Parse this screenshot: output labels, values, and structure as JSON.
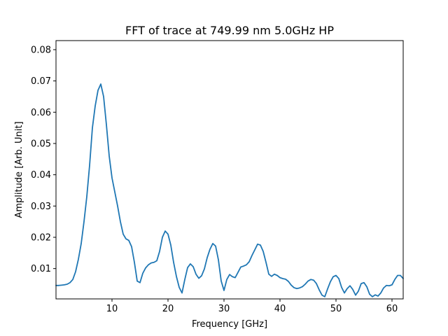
{
  "chart_data": {
    "type": "line",
    "title": "FFT of trace at 749.99 nm 5.0GHz HP",
    "xlabel": "Frequency [GHz]",
    "ylabel": "Amplitude [Arb. Unit]",
    "xlim": [
      0,
      62
    ],
    "ylim": [
      0.0003,
      0.0829
    ],
    "xticks": [
      10,
      20,
      30,
      40,
      50,
      60
    ],
    "yticks": [
      0.01,
      0.02,
      0.03,
      0.04,
      0.05,
      0.06,
      0.07,
      0.08
    ],
    "ytick_labels": [
      "0.01",
      "0.02",
      "0.03",
      "0.04",
      "0.05",
      "0.06",
      "0.07",
      "0.08"
    ],
    "grid": false,
    "colors": {
      "line": "#1f77b4"
    },
    "series": [
      {
        "x": [
          0,
          0.5,
          1,
          1.5,
          2,
          2.5,
          3,
          3.5,
          4,
          4.5,
          5,
          5.5,
          6,
          6.5,
          7,
          7.5,
          8,
          8.5,
          9,
          9.5,
          10,
          10.5,
          11,
          11.5,
          12,
          12.5,
          13,
          13.5,
          14,
          14.5,
          15,
          15.5,
          16,
          16.5,
          17,
          17.5,
          18,
          18.5,
          19,
          19.5,
          20,
          20.5,
          21,
          21.5,
          22,
          22.5,
          23,
          23.5,
          24,
          24.5,
          25,
          25.5,
          26,
          26.5,
          27,
          27.5,
          28,
          28.5,
          29,
          29.5,
          30,
          30.5,
          31,
          31.5,
          32,
          32.5,
          33,
          33.5,
          34,
          34.5,
          35,
          35.5,
          36,
          36.5,
          37,
          37.5,
          38,
          38.5,
          39,
          39.5,
          40,
          40.5,
          41,
          41.5,
          42,
          42.5,
          43,
          43.5,
          44,
          44.5,
          45,
          45.5,
          46,
          46.5,
          47,
          47.5,
          48,
          48.5,
          49,
          49.5,
          50,
          50.5,
          51,
          51.5,
          52,
          52.5,
          53,
          53.5,
          54,
          54.5,
          55,
          55.5,
          56,
          56.5,
          57,
          57.5,
          58,
          58.5,
          59,
          59.5,
          60,
          60.5,
          61,
          61.5,
          62
        ],
        "values": [
          0.0046,
          0.0046,
          0.0047,
          0.0048,
          0.005,
          0.0055,
          0.0065,
          0.009,
          0.013,
          0.018,
          0.025,
          0.033,
          0.043,
          0.055,
          0.062,
          0.067,
          0.069,
          0.065,
          0.056,
          0.046,
          0.039,
          0.0345,
          0.03,
          0.025,
          0.021,
          0.0195,
          0.019,
          0.017,
          0.012,
          0.006,
          0.0055,
          0.0085,
          0.0102,
          0.0112,
          0.0118,
          0.012,
          0.0125,
          0.0155,
          0.02,
          0.022,
          0.021,
          0.0175,
          0.012,
          0.0075,
          0.004,
          0.0022,
          0.0065,
          0.0103,
          0.0115,
          0.0106,
          0.0082,
          0.0069,
          0.0077,
          0.0099,
          0.0135,
          0.0162,
          0.018,
          0.0172,
          0.0128,
          0.006,
          0.003,
          0.0065,
          0.0081,
          0.0074,
          0.0071,
          0.0088,
          0.0105,
          0.0108,
          0.0112,
          0.0122,
          0.0142,
          0.016,
          0.0178,
          0.0175,
          0.0155,
          0.012,
          0.0082,
          0.0075,
          0.0082,
          0.0078,
          0.0071,
          0.0068,
          0.0066,
          0.0059,
          0.0047,
          0.0039,
          0.0036,
          0.0038,
          0.0042,
          0.005,
          0.006,
          0.0065,
          0.0063,
          0.0052,
          0.0032,
          0.0015,
          0.001,
          0.0035,
          0.0058,
          0.0074,
          0.0078,
          0.0068,
          0.004,
          0.0022,
          0.0036,
          0.0045,
          0.0033,
          0.0015,
          0.0028,
          0.0052,
          0.0055,
          0.0042,
          0.0018,
          0.001,
          0.0016,
          0.0012,
          0.0022,
          0.0038,
          0.0046,
          0.0045,
          0.0048,
          0.0065,
          0.0078,
          0.0078,
          0.0068
        ]
      }
    ]
  }
}
